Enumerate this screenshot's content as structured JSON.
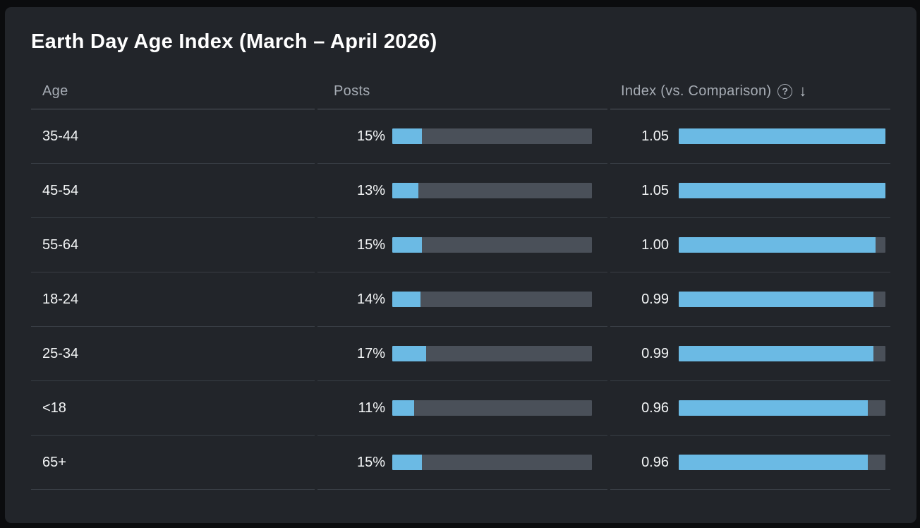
{
  "title": "Earth Day Age Index (March – April 2026)",
  "colors": {
    "accent_blue": "#6bbae4",
    "track_gray": "#4a5059",
    "card_bg": "#22252a",
    "page_bg": "#0b0c0e",
    "header_text": "#a6acb4",
    "body_text": "#f4f6f7"
  },
  "table": {
    "headers": {
      "age": "Age",
      "posts": "Posts",
      "index": "Index (vs. Comparison)"
    },
    "help_icon": "?",
    "sort_icon": "↓",
    "rows": [
      {
        "age": "35-44",
        "posts_label": "15%",
        "posts_pct": 15,
        "index_label": "1.05",
        "index_pct": 100
      },
      {
        "age": "45-54",
        "posts_label": "13%",
        "posts_pct": 13,
        "index_label": "1.05",
        "index_pct": 100
      },
      {
        "age": "55-64",
        "posts_label": "15%",
        "posts_pct": 15,
        "index_label": "1.00",
        "index_pct": 95.2
      },
      {
        "age": "18-24",
        "posts_label": "14%",
        "posts_pct": 14,
        "index_label": "0.99",
        "index_pct": 94.3
      },
      {
        "age": "25-34",
        "posts_label": "17%",
        "posts_pct": 17,
        "index_label": "0.99",
        "index_pct": 94.3
      },
      {
        "age": "<18",
        "posts_label": "11%",
        "posts_pct": 11,
        "index_label": "0.96",
        "index_pct": 91.4
      },
      {
        "age": "65+",
        "posts_label": "15%",
        "posts_pct": 15,
        "index_label": "0.96",
        "index_pct": 91.4
      }
    ]
  },
  "chart_data": {
    "type": "bar",
    "title": "Earth Day Age Index (March – April 2026)",
    "categories": [
      "35-44",
      "45-54",
      "55-64",
      "18-24",
      "25-34",
      "<18",
      "65+"
    ],
    "series": [
      {
        "name": "Posts",
        "values": [
          15,
          13,
          15,
          14,
          17,
          11,
          15
        ],
        "unit": "%",
        "axis_range": [
          0,
          100
        ]
      },
      {
        "name": "Index (vs. Comparison)",
        "values": [
          1.05,
          1.05,
          1.0,
          0.99,
          0.99,
          0.96,
          0.96
        ],
        "axis_range": [
          0,
          1.05
        ]
      }
    ],
    "sort": {
      "column": "Index (vs. Comparison)",
      "direction": "desc"
    },
    "orientation": "horizontal",
    "legend_position": "none",
    "grid": false
  }
}
